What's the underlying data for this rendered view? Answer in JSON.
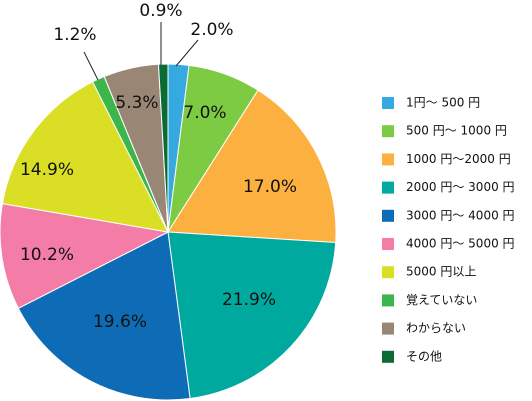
{
  "chart_data": {
    "type": "pie",
    "title": "",
    "slices": [
      {
        "label": "1円～ 500 円",
        "value": 2.0,
        "value_label": "2.0%",
        "color": "#36a9e1"
      },
      {
        "label": "500 円～ 1000 円",
        "value": 7.0,
        "value_label": "7.0%",
        "color": "#7dcb42"
      },
      {
        "label": "1000 円～2000 円",
        "value": 17.0,
        "value_label": "17.0%",
        "color": "#fbb040"
      },
      {
        "label": "2000 円～ 3000 円",
        "value": 21.9,
        "value_label": "21.9%",
        "color": "#00a99d"
      },
      {
        "label": "3000 円～ 4000 円",
        "value": 19.6,
        "value_label": "19.6%",
        "color": "#0d6cb5"
      },
      {
        "label": "4000 円～ 5000 円",
        "value": 10.2,
        "value_label": "10.2%",
        "color": "#f47da8"
      },
      {
        "label": "5000 円以上",
        "value": 14.9,
        "value_label": "14.9%",
        "color": "#dadf26"
      },
      {
        "label": "覚えていない",
        "value": 1.2,
        "value_label": "1.2%",
        "color": "#3cb54a"
      },
      {
        "label": "わからない",
        "value": 5.3,
        "value_label": "5.3%",
        "color": "#998675"
      },
      {
        "label": "その他",
        "value": 0.9,
        "value_label": "0.9%",
        "color": "#0b6b35"
      }
    ],
    "start_angle": "12 o'clock",
    "direction": "clockwise",
    "legend_position": "right"
  }
}
